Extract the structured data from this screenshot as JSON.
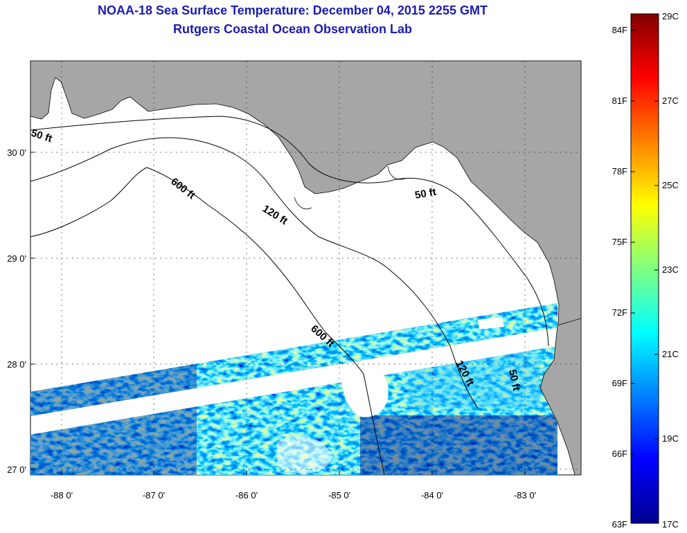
{
  "header": {
    "title": "NOAA-18 Sea Surface Temperature:  December 04, 2015 2255 GMT",
    "subtitle": "Rutgers Coastal Ocean Observation Lab"
  },
  "map": {
    "lon_ticks": [
      "-88 0'",
      "-87 0'",
      "-86 0'",
      "-85 0'",
      "-84 0'",
      "-83 0'"
    ],
    "lat_ticks": [
      "30 0'",
      "29 0'",
      "28 0'",
      "27 0'"
    ],
    "contour_labels": {
      "c50_west": "50 ft",
      "c50_east": "50 ft",
      "c50_south": "50 ft",
      "c600_north": "600 ft",
      "c600_south": "600 ft",
      "c120_north": "120 ft",
      "c120_south": "120 ft"
    },
    "colors": {
      "land": "#a6a6a6",
      "nodata": "#ffffff",
      "contour": "#000000"
    }
  },
  "colorbar": {
    "fahrenheit_labels": [
      "84F",
      "81F",
      "78F",
      "75F",
      "72F",
      "69F",
      "66F",
      "63F"
    ],
    "celsius_labels": [
      "29C",
      "27C",
      "25C",
      "23C",
      "21C",
      "19C",
      "17C"
    ],
    "colormap": [
      "#00008f",
      "#0000ff",
      "#0080ff",
      "#00ffff",
      "#80ff80",
      "#ffff00",
      "#ff8000",
      "#ff0000",
      "#800000"
    ]
  }
}
